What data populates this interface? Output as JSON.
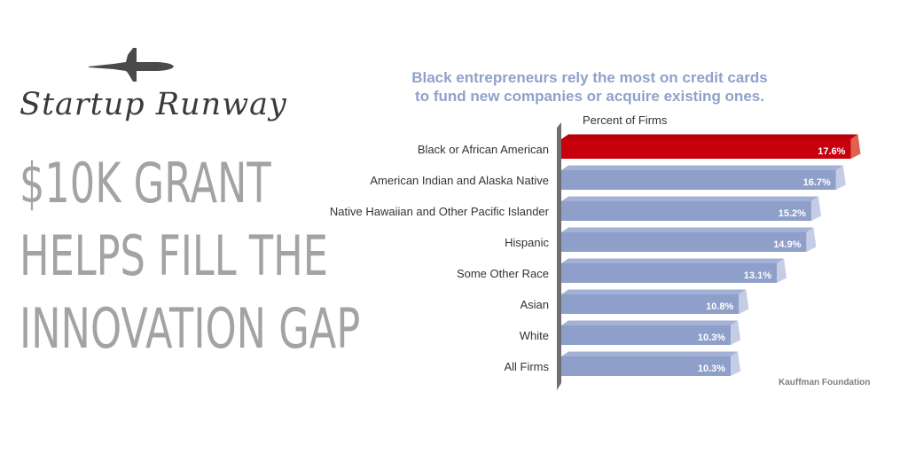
{
  "brand": {
    "airplane_icon": "airplane-icon",
    "name": "Startup Runway"
  },
  "headline": [
    "$10K GRANT",
    "HELPS FILL THE",
    "INNOVATION GAP"
  ],
  "chart_title": [
    "Black entrepreneurs rely the most on credit cards",
    "to fund new companies or acquire existing ones."
  ],
  "chart_data": {
    "type": "bar",
    "orientation": "horizontal",
    "xlabel": "Percent of Firms",
    "categories": [
      "Black or African American",
      "American Indian and Alaska Native",
      "Native Hawaiian and Other Pacific Islander",
      "Hispanic",
      "Some Other Race",
      "Asian",
      "White",
      "All Firms"
    ],
    "values": [
      17.6,
      16.7,
      15.2,
      14.9,
      13.1,
      10.8,
      10.3,
      10.3
    ],
    "value_labels": [
      "17.6%",
      "16.7%",
      "15.2%",
      "14.9%",
      "13.1%",
      "10.8%",
      "10.3%",
      "10.3%"
    ],
    "highlight_index": 0,
    "colors": {
      "highlight": "#c8000e",
      "highlight_end": "#e2604e",
      "bar": "#8e9fca",
      "bar_side": "#c5cde6",
      "wall": "#6e6e6e"
    }
  },
  "source": "Kauffman Foundation"
}
